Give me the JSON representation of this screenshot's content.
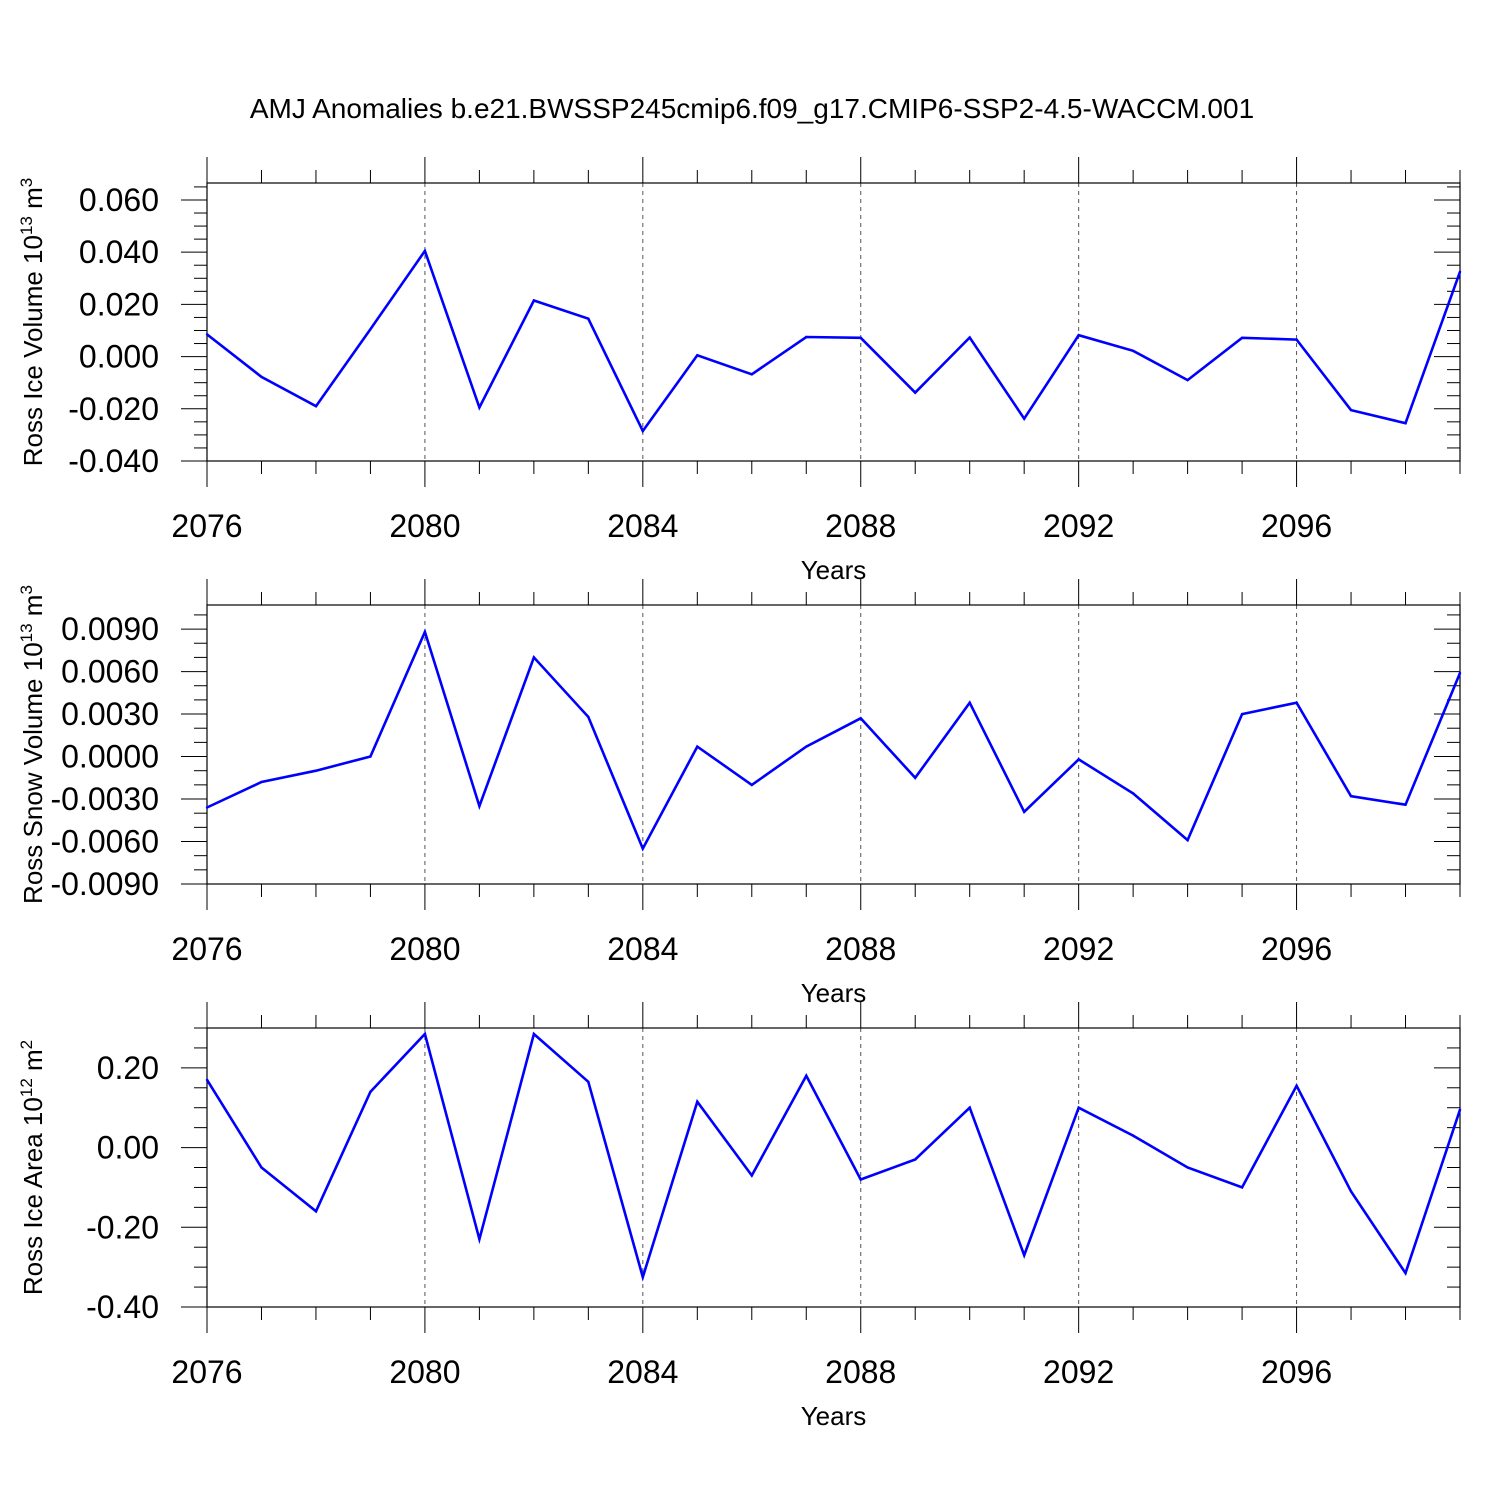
{
  "title": "AMJ Anomalies b.e21.BWSSP245cmip6.f09_g17.CMIP6-SSP2-4.5-WACCM.001",
  "colors": {
    "series": "#0000ff",
    "axes": "#000000",
    "grid": "#555555",
    "background": "#ffffff"
  },
  "chart_data": [
    {
      "type": "line",
      "ylabel": "Ross Ice Volume 10^13 m^3",
      "ylabel_parts": {
        "text": "Ross Ice Volume 10",
        "exp1": "13",
        "mid": " m",
        "exp2": "3"
      },
      "xlabel": "Years",
      "xlim": [
        2076,
        2099
      ],
      "ylim": [
        -0.04,
        0.0665
      ],
      "xticks": [
        2076,
        2080,
        2084,
        2088,
        2092,
        2096
      ],
      "xtick_labels": [
        "2076",
        "2080",
        "2084",
        "2088",
        "2092",
        "2096"
      ],
      "yticks": [
        -0.04,
        -0.02,
        0.0,
        0.02,
        0.04,
        0.06
      ],
      "ytick_labels": [
        "-0.040",
        "-0.020",
        "0.000",
        "0.020",
        "0.040",
        "0.060"
      ],
      "y_minor_step": 0.005,
      "grid": "vertical dashed at major x ticks",
      "x": [
        2076,
        2077,
        2078,
        2079,
        2080,
        2081,
        2082,
        2083,
        2084,
        2085,
        2086,
        2087,
        2088,
        2089,
        2090,
        2091,
        2092,
        2093,
        2094,
        2095,
        2096,
        2097,
        2098,
        2099
      ],
      "series": [
        {
          "values": [
            0.0085,
            -0.0078,
            -0.019,
            0.0105,
            0.0405,
            -0.0195,
            0.0215,
            0.0145,
            -0.0285,
            0.0005,
            -0.0068,
            0.0075,
            0.0072,
            -0.0138,
            0.0073,
            -0.0238,
            0.0082,
            0.0022,
            -0.009,
            0.0072,
            0.0065,
            -0.0205,
            -0.0255,
            0.0325
          ]
        }
      ]
    },
    {
      "type": "line",
      "ylabel": "Ross Snow Volume 10^13 m^3",
      "ylabel_parts": {
        "text": "Ross Snow Volume 10",
        "exp1": "13",
        "mid": " m",
        "exp2": "3"
      },
      "xlabel": "Years",
      "xlim": [
        2076,
        2099
      ],
      "ylim": [
        -0.009,
        0.0107
      ],
      "xticks": [
        2076,
        2080,
        2084,
        2088,
        2092,
        2096
      ],
      "xtick_labels": [
        "2076",
        "2080",
        "2084",
        "2088",
        "2092",
        "2096"
      ],
      "yticks": [
        -0.009,
        -0.006,
        -0.003,
        0.0,
        0.003,
        0.006,
        0.009
      ],
      "ytick_labels": [
        "-0.0090",
        "-0.0060",
        "-0.0030",
        "0.0000",
        "0.0030",
        "0.0060",
        "0.0090"
      ],
      "y_minor_step": 0.001,
      "grid": "vertical dashed at major x ticks",
      "x": [
        2076,
        2077,
        2078,
        2079,
        2080,
        2081,
        2082,
        2083,
        2084,
        2085,
        2086,
        2087,
        2088,
        2089,
        2090,
        2091,
        2092,
        2093,
        2094,
        2095,
        2096,
        2097,
        2098,
        2099
      ],
      "series": [
        {
          "values": [
            -0.0036,
            -0.0018,
            -0.001,
            0.0,
            0.0088,
            -0.0035,
            0.007,
            0.0028,
            -0.0065,
            0.0007,
            -0.002,
            0.0007,
            0.0027,
            -0.0015,
            0.0038,
            -0.0039,
            -0.0002,
            -0.0026,
            -0.0059,
            0.003,
            0.0038,
            -0.0028,
            -0.0034,
            0.0059
          ]
        }
      ]
    },
    {
      "type": "line",
      "ylabel": "Ross Ice Area 10^12 m^2",
      "ylabel_parts": {
        "text": "Ross Ice Area 10",
        "exp1": "12",
        "mid": " m",
        "exp2": "2"
      },
      "xlabel": "Years",
      "xlim": [
        2076,
        2099
      ],
      "ylim": [
        -0.4,
        0.3
      ],
      "xticks": [
        2076,
        2080,
        2084,
        2088,
        2092,
        2096
      ],
      "xtick_labels": [
        "2076",
        "2080",
        "2084",
        "2088",
        "2092",
        "2096"
      ],
      "yticks": [
        -0.4,
        -0.2,
        0.0,
        0.2
      ],
      "ytick_labels": [
        "-0.40",
        "-0.20",
        "0.00",
        "0.20"
      ],
      "y_minor_step": 0.05,
      "grid": "vertical dashed at major x ticks",
      "x": [
        2076,
        2077,
        2078,
        2079,
        2080,
        2081,
        2082,
        2083,
        2084,
        2085,
        2086,
        2087,
        2088,
        2089,
        2090,
        2091,
        2092,
        2093,
        2094,
        2095,
        2096,
        2097,
        2098,
        2099
      ],
      "series": [
        {
          "values": [
            0.17,
            -0.05,
            -0.16,
            0.14,
            0.285,
            -0.23,
            0.285,
            0.165,
            -0.325,
            0.115,
            -0.07,
            0.18,
            -0.08,
            -0.03,
            0.1,
            -0.27,
            0.1,
            0.03,
            -0.05,
            -0.1,
            0.155,
            -0.11,
            -0.315,
            0.095
          ]
        }
      ]
    }
  ]
}
